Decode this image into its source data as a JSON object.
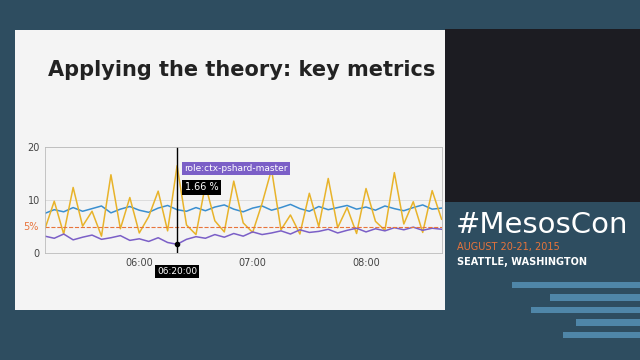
{
  "chart_data": {
    "type": "line",
    "title": "Applying the theory: key metrics",
    "categories": [
      null,
      null,
      null,
      null,
      null,
      null,
      null,
      null,
      null,
      null,
      "06:00",
      null,
      null,
      null,
      null,
      null,
      null,
      null,
      null,
      null,
      null,
      null,
      "07:00",
      null,
      null,
      null,
      null,
      null,
      null,
      null,
      null,
      null,
      null,
      null,
      "08:00",
      null,
      null,
      null,
      null,
      null,
      null,
      null,
      null
    ],
    "series": [
      {
        "color": "#3a8fd0",
        "values": [
          7.5,
          8.2,
          7.8,
          8.6,
          7.9,
          8.4,
          8.9,
          7.6,
          8.3,
          8.8,
          8.1,
          7.7,
          8.5,
          9.0,
          8.2,
          7.9,
          8.6,
          8.0,
          8.7,
          9.1,
          8.3,
          7.8,
          8.5,
          8.9,
          8.1,
          8.6,
          9.2,
          8.4,
          7.9,
          8.8,
          8.2,
          8.6,
          9.0,
          8.3,
          8.7,
          8.1,
          8.9,
          8.4,
          8.0,
          8.6,
          9.1,
          8.3,
          8.5
        ]
      },
      {
        "color": "#e8b32a",
        "values": [
          4.5,
          9.8,
          3.6,
          12.4,
          5.1,
          7.9,
          3.2,
          14.8,
          4.6,
          10.5,
          3.8,
          6.9,
          11.7,
          4.2,
          16.5,
          5.3,
          3.5,
          12.9,
          6.1,
          4.0,
          13.6,
          5.7,
          3.9,
          9.4,
          15.8,
          4.4,
          7.2,
          3.6,
          11.3,
          5.0,
          14.1,
          4.8,
          8.6,
          3.7,
          12.2,
          6.0,
          4.3,
          15.2,
          5.5,
          9.7,
          3.9,
          11.8,
          6.4
        ]
      },
      {
        "name": "role:ctx-pshard-master",
        "color": "#7b5fc7",
        "values": [
          3.2,
          2.8,
          3.6,
          2.5,
          3.0,
          3.4,
          2.6,
          2.9,
          3.3,
          2.4,
          2.7,
          2.2,
          2.9,
          2.0,
          1.66,
          2.6,
          3.1,
          2.8,
          3.5,
          3.0,
          3.7,
          3.2,
          4.0,
          3.5,
          3.8,
          4.2,
          3.6,
          4.4,
          3.9,
          4.1,
          4.5,
          3.8,
          4.3,
          4.7,
          4.0,
          4.6,
          4.2,
          4.8,
          4.4,
          4.9,
          4.3,
          4.7,
          4.5
        ]
      }
    ],
    "ylim": [
      0,
      20
    ],
    "yticks": [
      0,
      10,
      20
    ],
    "grid": true,
    "threshold": {
      "value": 5,
      "label": "5%",
      "color": "#e8743b"
    },
    "tooltip": {
      "series": "role:ctx-pshard-master",
      "index": 14,
      "value_label": "1.66 %",
      "x_label": "06:20:00"
    }
  },
  "event": {
    "hashtag": "#MesosCon",
    "dates": "AUGUST 20-21, 2015",
    "location": "SEATTLE, WASHINGTON"
  }
}
